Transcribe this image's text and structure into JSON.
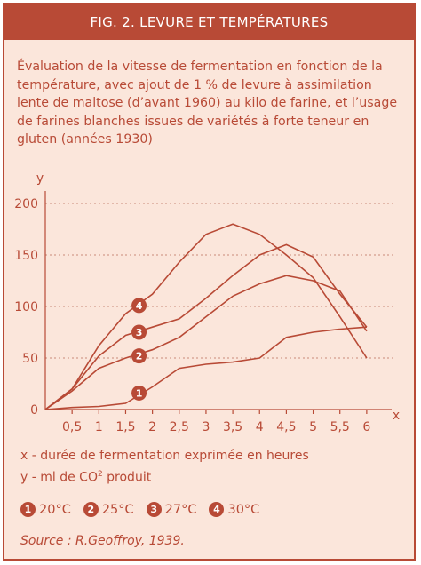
{
  "header": {
    "title": "FIG. 2.  LEVURE ET TEMPÉRATURES"
  },
  "description": "Évaluation de la vitesse de fermentation en fonction de la température, avec ajout de 1 % de levure à assimilation lente de maltose (d’avant 1960) au kilo de farine, et l’usage de farines blanches issues de variétés à forte teneur en gluten (années 1930)",
  "colors": {
    "accent": "#b84a36",
    "background": "#fbe6db"
  },
  "chart_data": {
    "type": "line",
    "x_axis_label": "x",
    "y_axis_label": "y",
    "x_ticks": [
      "0,5",
      "1",
      "1,5",
      "2",
      "2,5",
      "3",
      "3,5",
      "4",
      "4,5",
      "5",
      "5,5",
      "6"
    ],
    "y_ticks": [
      "0",
      "50",
      "100",
      "150",
      "200"
    ],
    "xlim": [
      0,
      6.4
    ],
    "ylim": [
      0,
      200
    ],
    "grid": true,
    "series": [
      {
        "name": "1",
        "x": [
          0,
          0.5,
          1,
          1.5,
          2,
          2.5,
          3,
          3.5,
          4,
          4.5,
          5,
          5.5,
          6
        ],
        "y": [
          0,
          2,
          3,
          6,
          22,
          40,
          44,
          46,
          50,
          70,
          75,
          78,
          80
        ]
      },
      {
        "name": "2",
        "x": [
          0,
          0.5,
          1,
          1.5,
          2,
          2.5,
          3,
          3.5,
          4,
          4.5,
          5,
          5.5,
          6
        ],
        "y": [
          0,
          18,
          40,
          50,
          58,
          70,
          90,
          110,
          122,
          130,
          125,
          115,
          76
        ]
      },
      {
        "name": "3",
        "x": [
          0,
          0.5,
          1,
          1.5,
          2,
          2.5,
          3,
          3.5,
          4,
          4.5,
          5,
          5.5,
          6
        ],
        "y": [
          0,
          20,
          52,
          72,
          80,
          88,
          108,
          130,
          150,
          160,
          148,
          112,
          80
        ]
      },
      {
        "name": "4",
        "x": [
          0,
          0.5,
          1,
          1.5,
          2,
          2.5,
          3,
          3.5,
          4,
          4.5,
          5,
          5.5,
          6
        ],
        "y": [
          0,
          20,
          62,
          93,
          112,
          143,
          170,
          180,
          170,
          150,
          128,
          90,
          50
        ]
      }
    ],
    "markers": [
      {
        "label": "1",
        "x": 1.75,
        "y": 16
      },
      {
        "label": "2",
        "x": 1.75,
        "y": 52
      },
      {
        "label": "3",
        "x": 1.75,
        "y": 75
      },
      {
        "label": "4",
        "x": 1.75,
        "y": 101
      }
    ]
  },
  "notes": {
    "x": "x - durée de fermentation exprimée en heures",
    "y_prefix": "y - ml de CO",
    "y_superscript": "2",
    "y_suffix": " produit"
  },
  "legend": [
    {
      "badge": "1",
      "label": "20°C"
    },
    {
      "badge": "2",
      "label": "25°C"
    },
    {
      "badge": "3",
      "label": "27°C"
    },
    {
      "badge": "4",
      "label": "30°C"
    }
  ],
  "source": "Source : R.Geoffroy, 1939."
}
